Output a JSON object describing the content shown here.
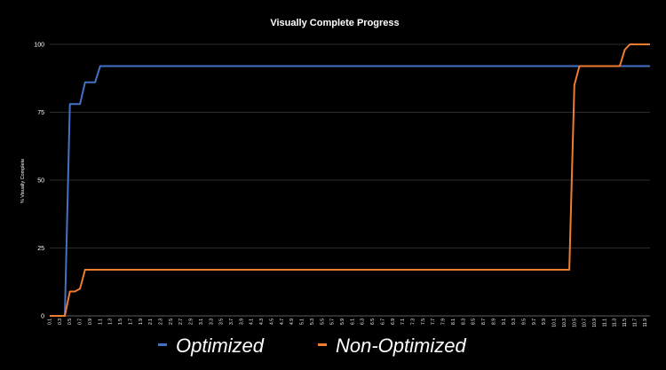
{
  "chart_data": {
    "type": "line",
    "title": "Visually Complete Progress",
    "xlabel": "",
    "ylabel": "% Visually Complete",
    "ylim": [
      0,
      100
    ],
    "yticks": [
      0,
      25,
      50,
      75,
      100
    ],
    "grid": true,
    "legend_position": "bottom",
    "x": [
      0.1,
      0.2,
      0.3,
      0.4,
      0.5,
      0.6,
      0.7,
      0.8,
      0.9,
      1.0,
      1.1,
      1.2,
      1.3,
      1.4,
      1.5,
      1.6,
      1.7,
      1.8,
      1.9,
      2.0,
      2.1,
      2.2,
      2.3,
      2.4,
      2.5,
      2.6,
      2.7,
      2.8,
      2.9,
      3.0,
      3.1,
      3.2,
      3.3,
      3.4,
      3.5,
      3.6,
      3.7,
      3.8,
      3.9,
      4.0,
      4.1,
      4.2,
      4.3,
      4.4,
      4.5,
      4.6,
      4.7,
      4.8,
      4.9,
      5.0,
      5.1,
      5.2,
      5.3,
      5.4,
      5.5,
      5.6,
      5.7,
      5.8,
      5.9,
      6.0,
      6.1,
      6.2,
      6.3,
      6.4,
      6.5,
      6.6,
      6.7,
      6.8,
      6.9,
      7.0,
      7.1,
      7.2,
      7.3,
      7.4,
      7.5,
      7.6,
      7.7,
      7.8,
      7.9,
      8.0,
      8.1,
      8.2,
      8.3,
      8.4,
      8.5,
      8.6,
      8.7,
      8.8,
      8.9,
      9.0,
      9.1,
      9.2,
      9.3,
      9.4,
      9.5,
      9.6,
      9.7,
      9.8,
      9.9,
      10.0,
      10.1,
      10.2,
      10.3,
      10.4,
      10.5,
      10.6,
      10.7,
      10.8,
      10.9,
      11.0,
      11.1,
      11.2,
      11.3,
      11.4,
      11.5,
      11.6,
      11.7,
      11.8,
      11.9,
      12.0
    ],
    "tick_labels": [
      "0.1",
      "0.3",
      "0.5",
      "0.7",
      "0.9",
      "1.1",
      "1.3",
      "1.5",
      "1.7",
      "1.9",
      "2.1",
      "2.3",
      "2.5",
      "2.7",
      "2.9",
      "3.1",
      "3.3",
      "3.5",
      "3.7",
      "3.9",
      "4.1",
      "4.3",
      "4.5",
      "4.7",
      "4.9",
      "5.1",
      "5.3",
      "5.5",
      "5.7",
      "5.9",
      "6.1",
      "6.3",
      "6.5",
      "6.7",
      "6.9",
      "7.1",
      "7.3",
      "7.5",
      "7.7",
      "7.9",
      "8.1",
      "8.3",
      "8.5",
      "8.7",
      "8.9",
      "9.1",
      "9.3",
      "9.5",
      "9.7",
      "9.9",
      "10.1",
      "10.3",
      "10.5",
      "10.7",
      "10.9",
      "11.1",
      "11.3",
      "11.5",
      "11.7",
      "11.9"
    ],
    "series": [
      {
        "name": "Optimized",
        "color": "#4472C4",
        "points": [
          [
            0.1,
            0
          ],
          [
            0.2,
            0
          ],
          [
            0.3,
            0
          ],
          [
            0.4,
            0
          ],
          [
            0.5,
            78
          ],
          [
            0.6,
            78
          ],
          [
            0.7,
            78
          ],
          [
            0.8,
            86
          ],
          [
            0.9,
            86
          ],
          [
            1.0,
            86
          ],
          [
            1.1,
            92
          ],
          [
            12.0,
            92
          ]
        ]
      },
      {
        "name": "Non-Optimized",
        "color": "#ED7D31",
        "points": [
          [
            0.1,
            0
          ],
          [
            0.2,
            0
          ],
          [
            0.3,
            0
          ],
          [
            0.4,
            0
          ],
          [
            0.5,
            9
          ],
          [
            0.6,
            9
          ],
          [
            0.7,
            10
          ],
          [
            0.8,
            17
          ],
          [
            10.4,
            17
          ],
          [
            10.5,
            85
          ],
          [
            10.6,
            92
          ],
          [
            11.4,
            92
          ],
          [
            11.5,
            98
          ],
          [
            11.6,
            100
          ],
          [
            12.0,
            100
          ]
        ]
      }
    ]
  },
  "legend": {
    "items": [
      {
        "label": "Optimized",
        "color": "#4472C4"
      },
      {
        "label": "Non-Optimized",
        "color": "#ED7D31"
      }
    ]
  }
}
